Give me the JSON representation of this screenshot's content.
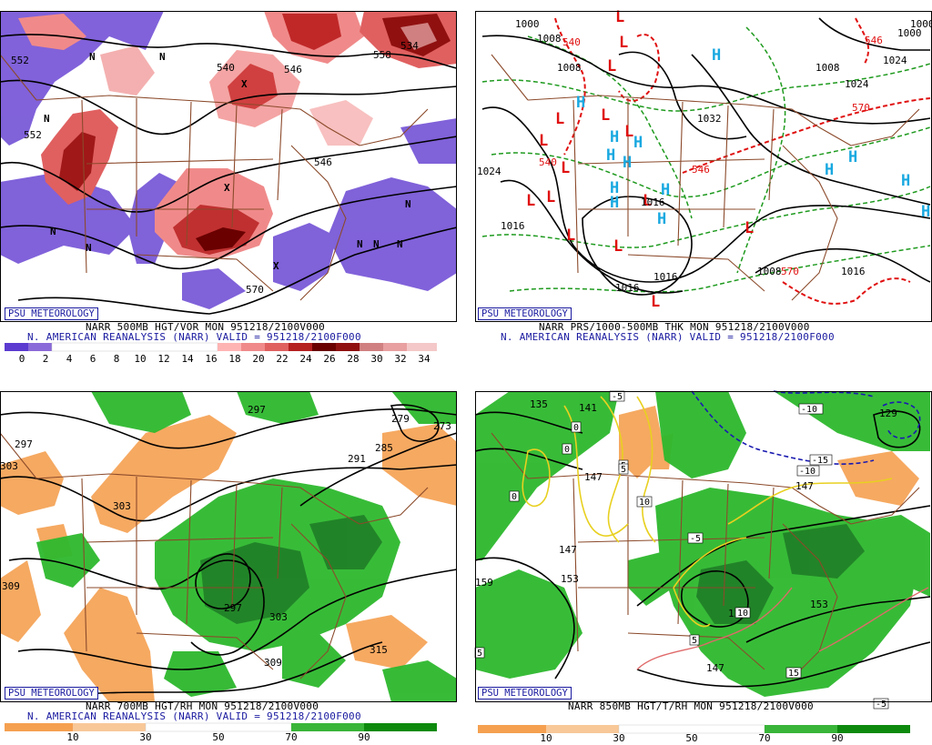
{
  "badge": "PSU METEOROLOGY",
  "colors": {
    "vorticity_scale": [
      "#5b3bd0",
      "#8a6ad8",
      "#ffffff",
      "#ffffff",
      "#ffffff",
      "#ffffff",
      "#ffffff",
      "#ffb4b4",
      "#f08a8a",
      "#e06060",
      "#d04040",
      "#b52020",
      "#901010",
      "#6a0000",
      "#d08080",
      "#e8a0a0",
      "#f4c8c8"
    ],
    "rh_scale": [
      "#f5a050",
      "#f8c898",
      "#ffffff",
      "#ffffff",
      "#39b539",
      "#0d8a0d",
      "#1a6a1a"
    ],
    "dry": "#f5a050",
    "moist": "#2db82d",
    "moist_dark": "#1e8a2a",
    "border": "#8b4a2b",
    "contour": "#000000",
    "low_marker": "#e01010",
    "high_marker": "#18a8e0",
    "thickness_green": "#1e9a1e",
    "thickness_red": "#e01010",
    "isotherm_yellow": "#e8d020",
    "isotherm_blue": "#1a1ab0",
    "isotherm_pink": "#e06a6a"
  },
  "panels": [
    {
      "id": "vorticity",
      "line1": "NARR 500MB HGT/VOR MON 951218/2100V000",
      "line2": "N. AMERICAN REANALYSIS (NARR) VALID = 951218/2100F000",
      "scale_ticks": [
        "0",
        "2",
        "4",
        "6",
        "8",
        "10",
        "12",
        "14",
        "16",
        "18",
        "20",
        "22",
        "24",
        "26",
        "28",
        "30",
        "32",
        "34"
      ],
      "contour_labels": [
        "552",
        "546",
        "552",
        "540",
        "570",
        "546",
        "558",
        "534"
      ],
      "centers": [
        "N",
        "N",
        "N",
        "N",
        "N",
        "N",
        "N",
        "N",
        "N",
        "X",
        "X",
        "X"
      ]
    },
    {
      "id": "mslp",
      "line1": "NARR PRS/1000-500MB THK MON 951218/2100V000",
      "line2": "N. AMERICAN REANALYSIS (NARR) VALID = 951218/2100F000",
      "contour_labels": [
        "1000",
        "1008",
        "1024",
        "1016",
        "1016",
        "1032",
        "1016",
        "1008",
        "1008",
        "1024",
        "1016",
        "1000",
        "1024",
        "1000",
        "1008",
        "1016"
      ],
      "thickness_labels": [
        "540",
        "540",
        "546",
        "570",
        "546",
        "570"
      ],
      "lows": [
        "L",
        "L",
        "L",
        "L",
        "L",
        "L",
        "L",
        "L",
        "L",
        "L",
        "L",
        "L",
        "L",
        "L",
        "L"
      ],
      "highs": [
        "H",
        "H",
        "H",
        "H",
        "H",
        "H",
        "H",
        "H",
        "H",
        "H",
        "H",
        "H",
        "H",
        "H"
      ]
    },
    {
      "id": "rh700",
      "line1": "NARR 700MB HGT/RH MON 951218/2100V000",
      "line2": "N. AMERICAN REANALYSIS (NARR) VALID = 951218/2100F000",
      "scale_ticks": [
        "10",
        "30",
        "50",
        "70",
        "90"
      ],
      "contour_labels": [
        "297",
        "297",
        "303",
        "303",
        "309",
        "297",
        "303",
        "309",
        "291",
        "285",
        "279",
        "273",
        "315"
      ]
    },
    {
      "id": "temp850",
      "line1": "NARR 850MB HGT/T/RH MON 951218/2100V000",
      "line2": "",
      "scale_ticks": [
        "10",
        "30",
        "50",
        "70",
        "90"
      ],
      "contour_labels": [
        "135",
        "141",
        "147",
        "147",
        "153",
        "159",
        "153",
        "147",
        "129",
        "147",
        "129"
      ],
      "isotherm_labels": [
        "-5",
        "-10",
        "-10",
        "-15",
        "0",
        "0",
        "5",
        "0",
        "5",
        "-5",
        "10",
        "5",
        "15",
        "5",
        "10",
        "-5"
      ]
    }
  ]
}
